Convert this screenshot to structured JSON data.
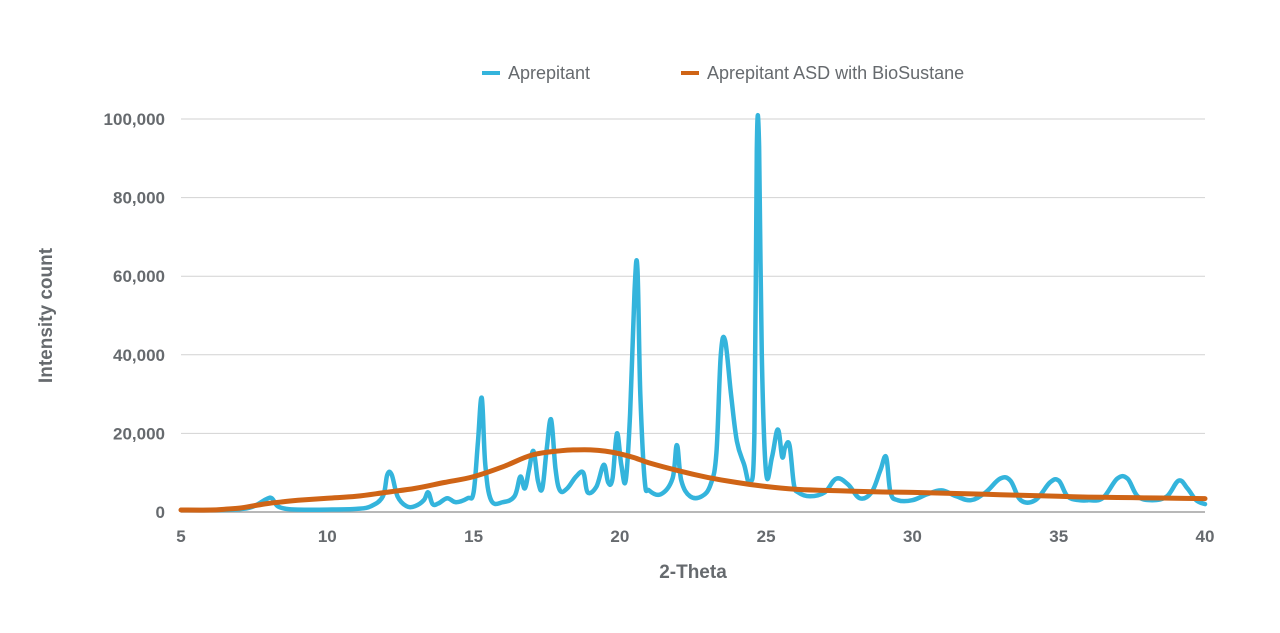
{
  "chart_data": {
    "type": "line",
    "xlabel": "2-Theta",
    "ylabel": "Intensity count",
    "xlim": [
      5,
      40
    ],
    "ylim": [
      0,
      100000
    ],
    "x_ticks": [
      5,
      10,
      15,
      20,
      25,
      30,
      35,
      40
    ],
    "x_tick_labels": [
      "5",
      "10",
      "15",
      "20",
      "25",
      "30",
      "35",
      "40"
    ],
    "y_ticks": [
      0,
      20000,
      40000,
      60000,
      80000,
      100000
    ],
    "y_tick_labels": [
      "0",
      "20,000",
      "40,000",
      "60,000",
      "80,000",
      "100,000"
    ],
    "grid": "horizontal",
    "legend_position": "top",
    "series": [
      {
        "name": "Aprepitant",
        "color": "#34b4dc",
        "x": [
          5,
          6,
          7,
          7.5,
          7.9,
          8.1,
          8.3,
          8.6,
          9,
          10,
          11,
          11.5,
          11.9,
          12.05,
          12.2,
          12.4,
          12.7,
          13,
          13.3,
          13.45,
          13.6,
          13.8,
          14.1,
          14.4,
          14.8,
          15,
          15.15,
          15.28,
          15.4,
          15.6,
          16,
          16.4,
          16.6,
          16.75,
          16.9,
          17.05,
          17.2,
          17.35,
          17.5,
          17.65,
          17.8,
          17.95,
          18.2,
          18.5,
          18.75,
          18.9,
          19.2,
          19.45,
          19.6,
          19.75,
          19.9,
          20.05,
          20.2,
          20.35,
          20.5,
          20.6,
          20.7,
          20.85,
          21,
          21.4,
          21.8,
          21.95,
          22.1,
          22.4,
          22.8,
          23.1,
          23.3,
          23.45,
          23.6,
          23.8,
          24.0,
          24.25,
          24.45,
          24.6,
          24.68,
          24.76,
          24.85,
          25.0,
          25.2,
          25.4,
          25.55,
          25.65,
          25.8,
          25.95,
          26.1,
          26.5,
          27.0,
          27.4,
          27.8,
          28.2,
          28.6,
          28.9,
          29.1,
          29.25,
          29.5,
          30,
          30.5,
          31,
          31.5,
          32,
          32.5,
          33,
          33.35,
          33.7,
          34.2,
          34.7,
          35,
          35.3,
          35.7,
          36,
          36.5,
          37,
          37.35,
          37.7,
          38.2,
          38.7,
          39.1,
          39.4,
          39.7,
          40
        ],
        "values": [
          500,
          500,
          700,
          1500,
          3200,
          3500,
          1500,
          800,
          600,
          600,
          800,
          1500,
          4000,
          9500,
          9500,
          4000,
          1500,
          1500,
          3000,
          5000,
          2000,
          2200,
          3500,
          2500,
          3500,
          5000,
          18000,
          29000,
          12000,
          3000,
          2500,
          4000,
          9000,
          6000,
          11000,
          15500,
          8000,
          6000,
          16000,
          23500,
          11000,
          5500,
          6000,
          9000,
          10000,
          5000,
          6500,
          12000,
          7500,
          8500,
          20000,
          12000,
          8000,
          25000,
          56000,
          62000,
          30000,
          8000,
          5500,
          4500,
          8500,
          17000,
          8000,
          4000,
          4000,
          7000,
          15000,
          40000,
          43500,
          30000,
          18000,
          12000,
          7500,
          20000,
          92000,
          93000,
          40000,
          10000,
          14000,
          21000,
          14000,
          16500,
          17000,
          7000,
          5000,
          4000,
          5000,
          8500,
          7000,
          3500,
          5000,
          10500,
          14000,
          5000,
          3000,
          3000,
          4500,
          5500,
          4000,
          3000,
          5000,
          8500,
          8000,
          3000,
          3000,
          7500,
          8000,
          4000,
          3000,
          3000,
          3500,
          8500,
          8500,
          4000,
          3000,
          4000,
          8000,
          6000,
          3000,
          2000
        ]
      },
      {
        "name": "Aprepitant ASD with BioSustane",
        "color": "#cf6416",
        "x": [
          5,
          6,
          6.5,
          7,
          7.5,
          8,
          8.5,
          9,
          10,
          11,
          12,
          13,
          14,
          15,
          16,
          17,
          18,
          18.5,
          19,
          19.5,
          20,
          20.5,
          21,
          22,
          23,
          24,
          25,
          26,
          27,
          28,
          29,
          30,
          31,
          32,
          33,
          34,
          35,
          36,
          37,
          38,
          39,
          40
        ],
        "values": [
          500,
          500,
          700,
          1000,
          1600,
          2200,
          2600,
          3000,
          3500,
          4000,
          5000,
          6000,
          7500,
          9000,
          11500,
          14500,
          15600,
          15800,
          15800,
          15500,
          14800,
          13800,
          12500,
          10500,
          8800,
          7500,
          6500,
          5800,
          5500,
          5300,
          5100,
          5000,
          4800,
          4600,
          4400,
          4200,
          4000,
          3800,
          3700,
          3600,
          3500,
          3400
        ]
      }
    ]
  }
}
